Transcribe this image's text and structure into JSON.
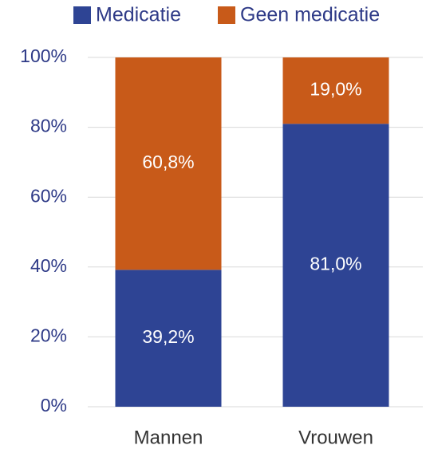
{
  "chart_data": {
    "type": "stacked_bar",
    "categories": [
      "Mannen",
      "Vrouwen"
    ],
    "series": [
      {
        "name": "Medicatie",
        "color": "#2e4494",
        "values": [
          39.2,
          81.0
        ],
        "value_labels": [
          "39,2%",
          "81,0%"
        ]
      },
      {
        "name": "Geen medicatie",
        "color": "#c85a19",
        "values": [
          60.8,
          19.0
        ],
        "value_labels": [
          "60,8%",
          "19,0%"
        ]
      }
    ],
    "ylim": [
      0,
      100
    ],
    "yticks": [
      {
        "value": 0,
        "label": "0%"
      },
      {
        "value": 20,
        "label": "20%"
      },
      {
        "value": 40,
        "label": "40%"
      },
      {
        "value": 60,
        "label": "60%"
      },
      {
        "value": 80,
        "label": "80%"
      },
      {
        "value": 100,
        "label": "100%"
      }
    ],
    "grid": true,
    "legend": "top"
  }
}
